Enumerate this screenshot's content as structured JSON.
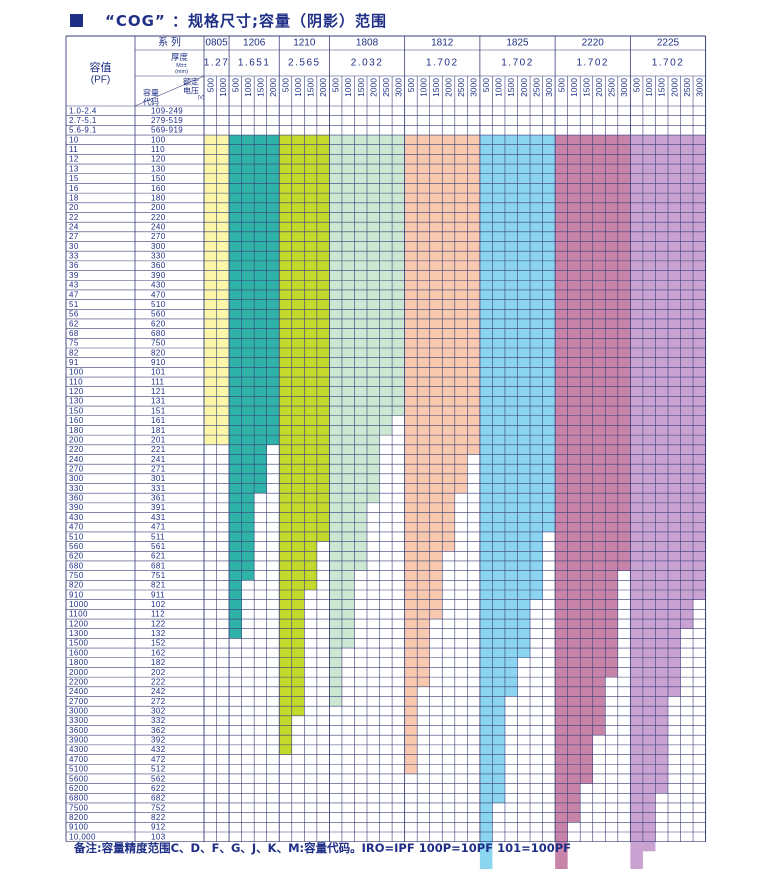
{
  "title": "“COG” ：规格尺寸;容量（阴影）范围",
  "header": {
    "capacitance_label": "容值",
    "capacitance_unit": "(PF)",
    "series_label": "系  列",
    "thickness_label": "厚度",
    "thickness_sub1": "M±±",
    "thickness_sub2": "(mm)",
    "rated_voltage_label1": "额定",
    "rated_voltage_label2": "电压",
    "rated_voltage_unit": "(V)",
    "cap_code_label1": "容量",
    "cap_code_label2": "代码"
  },
  "series": [
    {
      "name": "0805",
      "thickness": "1.27",
      "voltages": [
        "500",
        "1000"
      ],
      "color": "#fbf6a8",
      "max_row": [
        34,
        34
      ]
    },
    {
      "name": "1206",
      "thickness": "1.651",
      "voltages": [
        "500",
        "1000",
        "1500",
        "2000"
      ],
      "color": "#2fb2a8",
      "max_row": [
        54,
        48,
        39,
        34
      ]
    },
    {
      "name": "1210",
      "thickness": "2.565",
      "voltages": [
        "500",
        "1000",
        "1500",
        "2000"
      ],
      "color": "#c3d92c",
      "max_row": [
        66,
        62,
        49,
        44
      ]
    },
    {
      "name": "1808",
      "thickness": "2.032",
      "voltages": [
        "500",
        "1000",
        "1500",
        "2000",
        "2500",
        "3000"
      ],
      "color": "#cce7d2",
      "max_row": [
        61,
        55,
        47,
        40,
        33,
        31
      ]
    },
    {
      "name": "1812",
      "thickness": "1.702",
      "voltages": [
        "500",
        "1000",
        "1500",
        "2000",
        "2500",
        "3000"
      ],
      "color": "#f8c9ae",
      "max_row": [
        68,
        59,
        52,
        45,
        39,
        35
      ]
    },
    {
      "name": "1825",
      "thickness": "1.702",
      "voltages": [
        "500",
        "1000",
        "1500",
        "2000",
        "2500",
        "3000"
      ],
      "color": "#8bd5f0",
      "max_row": [
        78,
        71,
        60,
        56,
        50,
        43
      ]
    },
    {
      "name": "2220",
      "thickness": "1.702",
      "voltages": [
        "500",
        "1000",
        "1500",
        "2000",
        "2500",
        "3000"
      ],
      "color": "#c784a8",
      "max_row": [
        78,
        73,
        69,
        64,
        58,
        47
      ]
    },
    {
      "name": "2225",
      "thickness": "1.702",
      "voltages": [
        "500",
        "1000",
        "1500",
        "2000",
        "2500",
        "3000"
      ],
      "color": "#c9a2d2",
      "max_row": [
        81,
        76,
        70,
        60,
        53,
        50
      ]
    }
  ],
  "rows": [
    {
      "value": "1.0-2.4",
      "code": "109-249"
    },
    {
      "value": "2.7-5.1",
      "code": "279-519"
    },
    {
      "value": "5.6-9.1",
      "code": "569-919"
    },
    {
      "value": "10",
      "code": "100"
    },
    {
      "value": "11",
      "code": "110"
    },
    {
      "value": "12",
      "code": "120"
    },
    {
      "value": "13",
      "code": "130"
    },
    {
      "value": "15",
      "code": "150"
    },
    {
      "value": "16",
      "code": "160"
    },
    {
      "value": "18",
      "code": "180"
    },
    {
      "value": "20",
      "code": "200"
    },
    {
      "value": "22",
      "code": "220"
    },
    {
      "value": "24",
      "code": "240"
    },
    {
      "value": "27",
      "code": "270"
    },
    {
      "value": "30",
      "code": "300"
    },
    {
      "value": "33",
      "code": "330"
    },
    {
      "value": "36",
      "code": "360"
    },
    {
      "value": "39",
      "code": "390"
    },
    {
      "value": "43",
      "code": "430"
    },
    {
      "value": "47",
      "code": "470"
    },
    {
      "value": "51",
      "code": "510"
    },
    {
      "value": "56",
      "code": "560"
    },
    {
      "value": "62",
      "code": "620"
    },
    {
      "value": "68",
      "code": "680"
    },
    {
      "value": "75",
      "code": "750"
    },
    {
      "value": "82",
      "code": "820"
    },
    {
      "value": "91",
      "code": "910"
    },
    {
      "value": "100",
      "code": "101"
    },
    {
      "value": "110",
      "code": "111"
    },
    {
      "value": "120",
      "code": "121"
    },
    {
      "value": "130",
      "code": "131"
    },
    {
      "value": "150",
      "code": "151"
    },
    {
      "value": "160",
      "code": "161"
    },
    {
      "value": "180",
      "code": "181"
    },
    {
      "value": "200",
      "code": "201"
    },
    {
      "value": "220",
      "code": "221"
    },
    {
      "value": "240",
      "code": "241"
    },
    {
      "value": "270",
      "code": "271"
    },
    {
      "value": "300",
      "code": "301"
    },
    {
      "value": "330",
      "code": "331"
    },
    {
      "value": "360",
      "code": "361"
    },
    {
      "value": "390",
      "code": "391"
    },
    {
      "value": "430",
      "code": "431"
    },
    {
      "value": "470",
      "code": "471"
    },
    {
      "value": "510",
      "code": "511"
    },
    {
      "value": "560",
      "code": "561"
    },
    {
      "value": "620",
      "code": "621"
    },
    {
      "value": "680",
      "code": "681"
    },
    {
      "value": "750",
      "code": "751"
    },
    {
      "value": "820",
      "code": "821"
    },
    {
      "value": "910",
      "code": "911"
    },
    {
      "value": "1000",
      "code": "102"
    },
    {
      "value": "1100",
      "code": "112"
    },
    {
      "value": "1200",
      "code": "122"
    },
    {
      "value": "1300",
      "code": "132"
    },
    {
      "value": "1500",
      "code": "152"
    },
    {
      "value": "1600",
      "code": "162"
    },
    {
      "value": "1800",
      "code": "182"
    },
    {
      "value": "2000",
      "code": "202"
    },
    {
      "value": "2200",
      "code": "222"
    },
    {
      "value": "2400",
      "code": "242"
    },
    {
      "value": "2700",
      "code": "272"
    },
    {
      "value": "3000",
      "code": "302"
    },
    {
      "value": "3300",
      "code": "332"
    },
    {
      "value": "3600",
      "code": "362"
    },
    {
      "value": "3900",
      "code": "392"
    },
    {
      "value": "4300",
      "code": "432"
    },
    {
      "value": "4700",
      "code": "472"
    },
    {
      "value": "5100",
      "code": "512"
    },
    {
      "value": "5600",
      "code": "562"
    },
    {
      "value": "6200",
      "code": "622"
    },
    {
      "value": "6800",
      "code": "682"
    },
    {
      "value": "7500",
      "code": "752"
    },
    {
      "value": "8200",
      "code": "822"
    },
    {
      "value": "9100",
      "code": "912"
    },
    {
      "value": "10,000",
      "code": "103"
    }
  ],
  "colors": {
    "line": "#3a3f7a",
    "text": "#1f2f86"
  },
  "footnote": "备注:容量精度范围C、D、F、G、J、K、M:容量代码。IRO=IPF 100P=10PF 101=100PF"
}
